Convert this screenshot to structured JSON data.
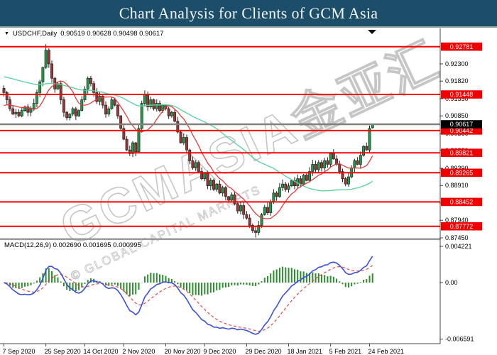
{
  "title_bar": {
    "title": "Chart Analysis for Clients of GCM Asia",
    "bg_color": "#1c4e6a"
  },
  "chart_header": {
    "dropdown_icon": "▼",
    "symbol": "USDCHF,Daily",
    "ohlc_text": "0.90519 0.90628 0.90498 0.90617"
  },
  "macd_header": {
    "label": "MACD(12,26,9) 0.002690 0.001695 0.000995"
  },
  "watermark": {
    "line1": "GCMASIA金亚汇",
    "line2": "© GLOBAL CAPITAL MARKETS"
  },
  "colors": {
    "titlebar_bg": "#1c4e6a",
    "bull_candle": "#1e9e46",
    "bear_candle": "#a33434",
    "candle_outline": "#222222",
    "ma_fast": "#e03c3c",
    "ma_slow": "#5fd3a0",
    "hline_red": "#ff0000",
    "current_line": "#808080",
    "label_red_bg": "#f20000",
    "label_black_bg": "#000000",
    "macd_line": "#3b4fd8",
    "macd_signal": "#e03c3c",
    "macd_hist": "#2e8b2e",
    "axis_line": "#444444",
    "separator": "#9a9a9a",
    "watermark_stroke": "#c6c6c6"
  },
  "chart_data": {
    "type": "candlestick",
    "symbol": "USDCHF",
    "timeframe": "Daily",
    "grid": false,
    "last_ohlc": {
      "open": 0.90519,
      "high": 0.90628,
      "low": 0.90498,
      "close": 0.90617
    },
    "current_price": 0.90617,
    "price_axis": {
      "side": "right",
      "ylim": [
        0.8743,
        0.9325
      ],
      "ticks": [
        0.923,
        0.9182,
        0.9133,
        0.9085,
        0.9036,
        0.8988,
        0.8939,
        0.8891,
        0.8842,
        0.8794,
        0.8745
      ]
    },
    "hlines": [
      0.92781,
      0.91448,
      0.90442,
      0.89821,
      0.89265,
      0.88452,
      0.87772
    ],
    "x_labels": [
      {
        "bar": 0,
        "label": "7 Sep 2020"
      },
      {
        "bar": 14,
        "label": "25 Sep 2020"
      },
      {
        "bar": 27,
        "label": "14 Oct 2020"
      },
      {
        "bar": 40,
        "label": "2 Nov 2020"
      },
      {
        "bar": 54,
        "label": "20 Nov 2020"
      },
      {
        "bar": 67,
        "label": "9 Dec 2020"
      },
      {
        "bar": 81,
        "label": "29 Dec 2020"
      },
      {
        "bar": 95,
        "label": "18 Jan 2021"
      },
      {
        "bar": 109,
        "label": "5 Feb 2021"
      },
      {
        "bar": 122,
        "label": "24 Feb 2021"
      }
    ],
    "closes": [
      0.915,
      0.913,
      0.9105,
      0.909,
      0.9095,
      0.9085,
      0.91,
      0.911,
      0.9095,
      0.9105,
      0.912,
      0.915,
      0.918,
      0.922,
      0.9268,
      0.923,
      0.919,
      0.916,
      0.9175,
      0.913,
      0.9095,
      0.908,
      0.909,
      0.9105,
      0.9085,
      0.91,
      0.913,
      0.916,
      0.919,
      0.9175,
      0.915,
      0.9125,
      0.914,
      0.9115,
      0.909,
      0.9105,
      0.913,
      0.9115,
      0.9085,
      0.905,
      0.902,
      0.899,
      0.898,
      0.901,
      0.8985,
      0.905,
      0.912,
      0.9145,
      0.911,
      0.913,
      0.9105,
      0.912,
      0.91,
      0.9115,
      0.9105,
      0.9085,
      0.9095,
      0.907,
      0.904,
      0.901,
      0.9025,
      0.899,
      0.896,
      0.894,
      0.8955,
      0.893,
      0.891,
      0.8925,
      0.889,
      0.8905,
      0.888,
      0.8895,
      0.887,
      0.8885,
      0.886,
      0.885,
      0.8865,
      0.884,
      0.882,
      0.8835,
      0.881,
      0.88,
      0.878,
      0.8765,
      0.876,
      0.878,
      0.881,
      0.883,
      0.8815,
      0.8845,
      0.887,
      0.886,
      0.8885,
      0.8895,
      0.888,
      0.889,
      0.8905,
      0.889,
      0.891,
      0.8895,
      0.892,
      0.8905,
      0.893,
      0.895,
      0.8935,
      0.8955,
      0.894,
      0.896,
      0.895,
      0.898,
      0.8965,
      0.895,
      0.893,
      0.891,
      0.8895,
      0.8915,
      0.894,
      0.896,
      0.895,
      0.8975,
      0.9,
      0.899,
      0.905,
      0.90617
    ],
    "wick_high_overrides": {
      "14": 0.9285
    },
    "wick_low_overrides": {
      "84": 0.8746
    },
    "overlays": {
      "ma_fast_period": 10,
      "ma_slow_period": 45,
      "ma_fast_pad": 0.911,
      "ma_slow_pad": 0.9195
    },
    "macd": {
      "params": [
        12,
        26,
        9
      ],
      "values": [
        0.00269,
        0.001695,
        0.000995
      ],
      "ylim": [
        -0.006591,
        0.004221
      ],
      "axis_ticks": [
        {
          "v": 0.004221,
          "label": "0.004221"
        },
        {
          "v": 0,
          "label": "0.00"
        },
        {
          "v": -0.006591,
          "label": "-0.006591"
        }
      ]
    }
  }
}
